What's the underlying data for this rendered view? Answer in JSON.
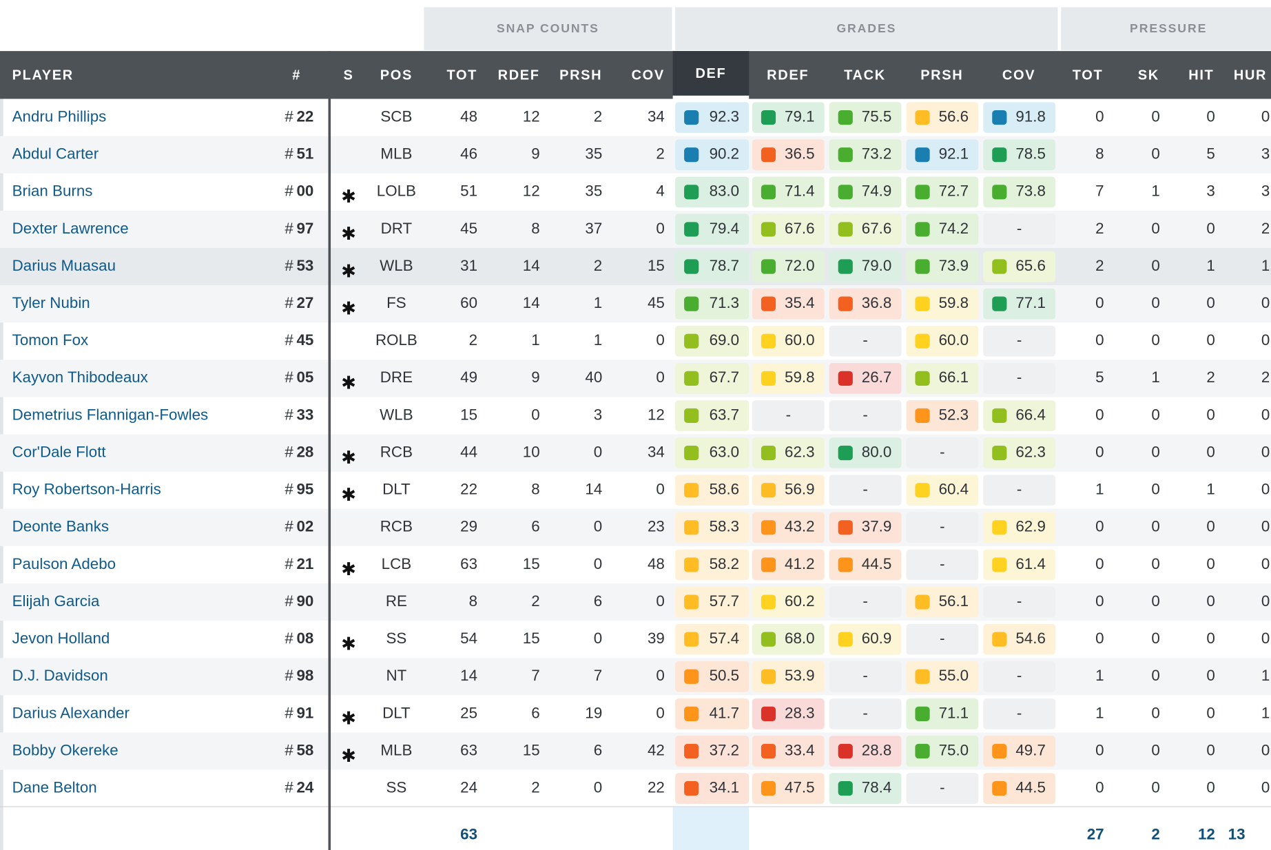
{
  "groups": {
    "snap_counts": "SNAP COUNTS",
    "grades": "GRADES",
    "pressure": "PRESSURE"
  },
  "headers": {
    "player": "PLAYER",
    "number": "#",
    "starter": "S",
    "pos": "POS",
    "snap_tot": "TOT",
    "snap_rdef": "RDEF",
    "snap_prsh": "PRSH",
    "snap_cov": "COV",
    "g_def": "DEF",
    "g_rdef": "RDEF",
    "g_tack": "TACK",
    "g_prsh": "PRSH",
    "g_cov": "COV",
    "p_tot": "TOT",
    "p_sk": "SK",
    "p_hit": "HIT",
    "p_hur": "HUR"
  },
  "grade_colors": {
    "blue": "#1a7fb0",
    "dark_green": "#1e9d55",
    "green": "#49ad2f",
    "lime": "#93bf1e",
    "yellow": "#ffd21f",
    "amber": "#ffbd23",
    "orange": "#ff941a",
    "red_orange": "#f2611f",
    "red": "#da3228"
  },
  "rows": [
    {
      "name": "Andru Phillips",
      "hash": "#",
      "num": "22",
      "star": "",
      "pos": "SCB",
      "tot": "48",
      "rdef": "12",
      "prsh": "2",
      "cov": "34",
      "g": [
        {
          "v": "92.3",
          "c": "blue"
        },
        {
          "v": "79.1",
          "c": "dark_green"
        },
        {
          "v": "75.5",
          "c": "green"
        },
        {
          "v": "56.6",
          "c": "amber"
        },
        {
          "v": "91.8",
          "c": "blue"
        }
      ],
      "p": [
        "0",
        "0",
        "0",
        "0"
      ]
    },
    {
      "name": "Abdul Carter",
      "hash": "#",
      "num": "51",
      "star": "",
      "pos": "MLB",
      "tot": "46",
      "rdef": "9",
      "prsh": "35",
      "cov": "2",
      "g": [
        {
          "v": "90.2",
          "c": "blue"
        },
        {
          "v": "36.5",
          "c": "red_orange"
        },
        {
          "v": "73.2",
          "c": "green"
        },
        {
          "v": "92.1",
          "c": "blue"
        },
        {
          "v": "78.5",
          "c": "dark_green"
        }
      ],
      "p": [
        "8",
        "0",
        "5",
        "3"
      ]
    },
    {
      "name": "Brian Burns",
      "hash": "#",
      "num": "00",
      "star": "✱",
      "pos": "LOLB",
      "tot": "51",
      "rdef": "12",
      "prsh": "35",
      "cov": "4",
      "g": [
        {
          "v": "83.0",
          "c": "dark_green"
        },
        {
          "v": "71.4",
          "c": "green"
        },
        {
          "v": "74.9",
          "c": "green"
        },
        {
          "v": "72.7",
          "c": "green"
        },
        {
          "v": "73.8",
          "c": "green"
        }
      ],
      "p": [
        "7",
        "1",
        "3",
        "3"
      ]
    },
    {
      "name": "Dexter Lawrence",
      "hash": "#",
      "num": "97",
      "star": "✱",
      "pos": "DRT",
      "tot": "45",
      "rdef": "8",
      "prsh": "37",
      "cov": "0",
      "g": [
        {
          "v": "79.4",
          "c": "dark_green"
        },
        {
          "v": "67.6",
          "c": "lime"
        },
        {
          "v": "67.6",
          "c": "lime"
        },
        {
          "v": "74.2",
          "c": "green"
        },
        {
          "v": "-",
          "c": ""
        }
      ],
      "p": [
        "2",
        "0",
        "0",
        "2"
      ]
    },
    {
      "name": "Darius Muasau",
      "hash": "#",
      "num": "53",
      "star": "✱",
      "pos": "WLB",
      "tot": "31",
      "rdef": "14",
      "prsh": "2",
      "cov": "15",
      "g": [
        {
          "v": "78.7",
          "c": "dark_green"
        },
        {
          "v": "72.0",
          "c": "green"
        },
        {
          "v": "79.0",
          "c": "dark_green"
        },
        {
          "v": "73.9",
          "c": "green"
        },
        {
          "v": "65.6",
          "c": "lime"
        }
      ],
      "p": [
        "2",
        "0",
        "1",
        "1"
      ]
    },
    {
      "name": "Tyler Nubin",
      "hash": "#",
      "num": "27",
      "star": "✱",
      "pos": "FS",
      "tot": "60",
      "rdef": "14",
      "prsh": "1",
      "cov": "45",
      "g": [
        {
          "v": "71.3",
          "c": "green"
        },
        {
          "v": "35.4",
          "c": "red_orange"
        },
        {
          "v": "36.8",
          "c": "red_orange"
        },
        {
          "v": "59.8",
          "c": "yellow"
        },
        {
          "v": "77.1",
          "c": "dark_green"
        }
      ],
      "p": [
        "0",
        "0",
        "0",
        "0"
      ]
    },
    {
      "name": "Tomon Fox",
      "hash": "#",
      "num": "45",
      "star": "",
      "pos": "ROLB",
      "tot": "2",
      "rdef": "1",
      "prsh": "1",
      "cov": "0",
      "g": [
        {
          "v": "69.0",
          "c": "lime"
        },
        {
          "v": "60.0",
          "c": "yellow"
        },
        {
          "v": "-",
          "c": ""
        },
        {
          "v": "60.0",
          "c": "yellow"
        },
        {
          "v": "-",
          "c": ""
        }
      ],
      "p": [
        "0",
        "0",
        "0",
        "0"
      ]
    },
    {
      "name": "Kayvon Thibodeaux",
      "hash": "#",
      "num": "05",
      "star": "✱",
      "pos": "DRE",
      "tot": "49",
      "rdef": "9",
      "prsh": "40",
      "cov": "0",
      "g": [
        {
          "v": "67.7",
          "c": "lime"
        },
        {
          "v": "59.8",
          "c": "yellow"
        },
        {
          "v": "26.7",
          "c": "red"
        },
        {
          "v": "66.1",
          "c": "lime"
        },
        {
          "v": "-",
          "c": ""
        }
      ],
      "p": [
        "5",
        "1",
        "2",
        "2"
      ]
    },
    {
      "name": "Demetrius Flannigan-Fowles",
      "hash": "#",
      "num": "33",
      "star": "",
      "pos": "WLB",
      "tot": "15",
      "rdef": "0",
      "prsh": "3",
      "cov": "12",
      "g": [
        {
          "v": "63.7",
          "c": "lime"
        },
        {
          "v": "-",
          "c": ""
        },
        {
          "v": "-",
          "c": ""
        },
        {
          "v": "52.3",
          "c": "orange"
        },
        {
          "v": "66.4",
          "c": "lime"
        }
      ],
      "p": [
        "0",
        "0",
        "0",
        "0"
      ]
    },
    {
      "name": "Cor'Dale Flott",
      "hash": "#",
      "num": "28",
      "star": "✱",
      "pos": "RCB",
      "tot": "44",
      "rdef": "10",
      "prsh": "0",
      "cov": "34",
      "g": [
        {
          "v": "63.0",
          "c": "lime"
        },
        {
          "v": "62.3",
          "c": "lime"
        },
        {
          "v": "80.0",
          "c": "dark_green"
        },
        {
          "v": "-",
          "c": ""
        },
        {
          "v": "62.3",
          "c": "lime"
        }
      ],
      "p": [
        "0",
        "0",
        "0",
        "0"
      ]
    },
    {
      "name": "Roy Robertson-Harris",
      "hash": "#",
      "num": "95",
      "star": "✱",
      "pos": "DLT",
      "tot": "22",
      "rdef": "8",
      "prsh": "14",
      "cov": "0",
      "g": [
        {
          "v": "58.6",
          "c": "amber"
        },
        {
          "v": "56.9",
          "c": "amber"
        },
        {
          "v": "-",
          "c": ""
        },
        {
          "v": "60.4",
          "c": "yellow"
        },
        {
          "v": "-",
          "c": ""
        }
      ],
      "p": [
        "1",
        "0",
        "1",
        "0"
      ]
    },
    {
      "name": "Deonte Banks",
      "hash": "#",
      "num": "02",
      "star": "",
      "pos": "RCB",
      "tot": "29",
      "rdef": "6",
      "prsh": "0",
      "cov": "23",
      "g": [
        {
          "v": "58.3",
          "c": "amber"
        },
        {
          "v": "43.2",
          "c": "orange"
        },
        {
          "v": "37.9",
          "c": "red_orange"
        },
        {
          "v": "-",
          "c": ""
        },
        {
          "v": "62.9",
          "c": "yellow"
        }
      ],
      "p": [
        "0",
        "0",
        "0",
        "0"
      ]
    },
    {
      "name": "Paulson Adebo",
      "hash": "#",
      "num": "21",
      "star": "✱",
      "pos": "LCB",
      "tot": "63",
      "rdef": "15",
      "prsh": "0",
      "cov": "48",
      "g": [
        {
          "v": "58.2",
          "c": "amber"
        },
        {
          "v": "41.2",
          "c": "orange"
        },
        {
          "v": "44.5",
          "c": "orange"
        },
        {
          "v": "-",
          "c": ""
        },
        {
          "v": "61.4",
          "c": "yellow"
        }
      ],
      "p": [
        "0",
        "0",
        "0",
        "0"
      ]
    },
    {
      "name": "Elijah Garcia",
      "hash": "#",
      "num": "90",
      "star": "",
      "pos": "RE",
      "tot": "8",
      "rdef": "2",
      "prsh": "6",
      "cov": "0",
      "g": [
        {
          "v": "57.7",
          "c": "amber"
        },
        {
          "v": "60.2",
          "c": "yellow"
        },
        {
          "v": "-",
          "c": ""
        },
        {
          "v": "56.1",
          "c": "amber"
        },
        {
          "v": "-",
          "c": ""
        }
      ],
      "p": [
        "0",
        "0",
        "0",
        "0"
      ]
    },
    {
      "name": "Jevon Holland",
      "hash": "#",
      "num": "08",
      "star": "✱",
      "pos": "SS",
      "tot": "54",
      "rdef": "15",
      "prsh": "0",
      "cov": "39",
      "g": [
        {
          "v": "57.4",
          "c": "amber"
        },
        {
          "v": "68.0",
          "c": "lime"
        },
        {
          "v": "60.9",
          "c": "yellow"
        },
        {
          "v": "-",
          "c": ""
        },
        {
          "v": "54.6",
          "c": "amber"
        }
      ],
      "p": [
        "0",
        "0",
        "0",
        "0"
      ]
    },
    {
      "name": "D.J. Davidson",
      "hash": "#",
      "num": "98",
      "star": "",
      "pos": "NT",
      "tot": "14",
      "rdef": "7",
      "prsh": "7",
      "cov": "0",
      "g": [
        {
          "v": "50.5",
          "c": "orange"
        },
        {
          "v": "53.9",
          "c": "amber"
        },
        {
          "v": "-",
          "c": ""
        },
        {
          "v": "55.0",
          "c": "amber"
        },
        {
          "v": "-",
          "c": ""
        }
      ],
      "p": [
        "1",
        "0",
        "0",
        "1"
      ]
    },
    {
      "name": "Darius Alexander",
      "hash": "#",
      "num": "91",
      "star": "✱",
      "pos": "DLT",
      "tot": "25",
      "rdef": "6",
      "prsh": "19",
      "cov": "0",
      "g": [
        {
          "v": "41.7",
          "c": "orange"
        },
        {
          "v": "28.3",
          "c": "red"
        },
        {
          "v": "-",
          "c": ""
        },
        {
          "v": "71.1",
          "c": "green"
        },
        {
          "v": "-",
          "c": ""
        }
      ],
      "p": [
        "1",
        "0",
        "0",
        "1"
      ]
    },
    {
      "name": "Bobby Okereke",
      "hash": "#",
      "num": "58",
      "star": "✱",
      "pos": "MLB",
      "tot": "63",
      "rdef": "15",
      "prsh": "6",
      "cov": "42",
      "g": [
        {
          "v": "37.2",
          "c": "red_orange"
        },
        {
          "v": "33.4",
          "c": "red_orange"
        },
        {
          "v": "28.8",
          "c": "red"
        },
        {
          "v": "75.0",
          "c": "green"
        },
        {
          "v": "49.7",
          "c": "orange"
        }
      ],
      "p": [
        "0",
        "0",
        "0",
        "0"
      ]
    },
    {
      "name": "Dane Belton",
      "hash": "#",
      "num": "24",
      "star": "",
      "pos": "SS",
      "tot": "24",
      "rdef": "2",
      "prsh": "0",
      "cov": "22",
      "g": [
        {
          "v": "34.1",
          "c": "red_orange"
        },
        {
          "v": "47.5",
          "c": "orange"
        },
        {
          "v": "78.4",
          "c": "dark_green"
        },
        {
          "v": "-",
          "c": ""
        },
        {
          "v": "44.5",
          "c": "orange"
        }
      ],
      "p": [
        "0",
        "0",
        "0",
        "0"
      ]
    }
  ],
  "totals": {
    "snap_tot": "63",
    "p_tot": "27",
    "p_sk": "2",
    "p_hit": "12",
    "p_hur": "13"
  }
}
